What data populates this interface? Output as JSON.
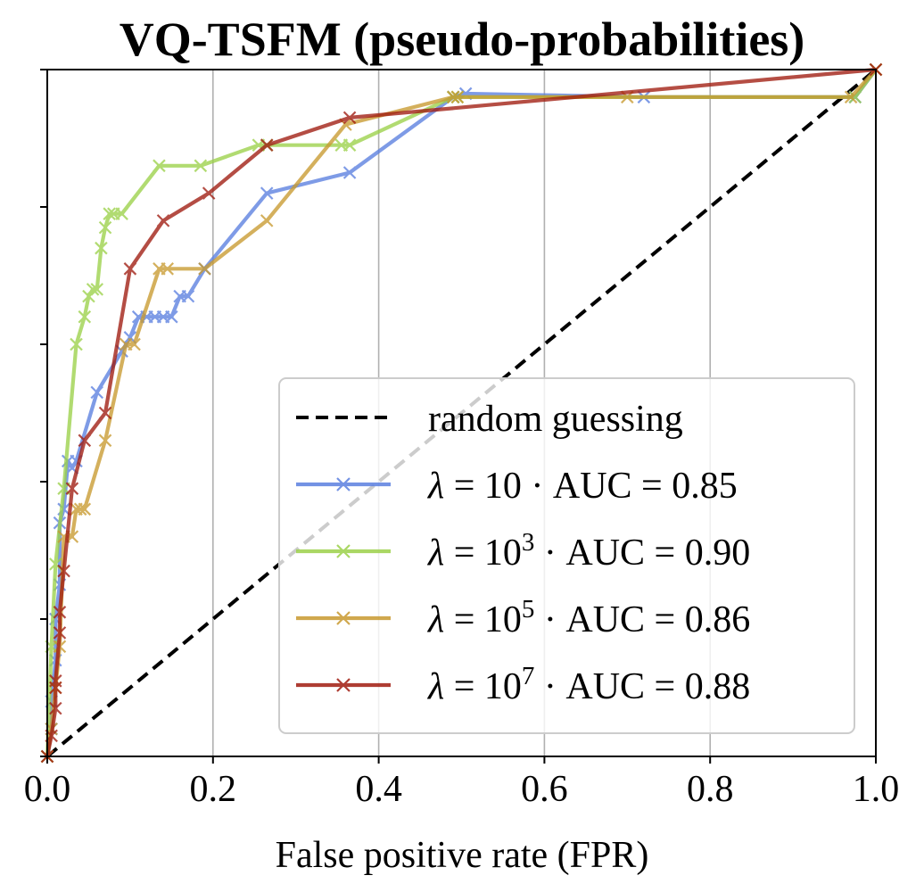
{
  "chart_data": {
    "type": "line",
    "title": "VQ-TSFM (pseudo-probabilities)",
    "xlabel": "False positive rate (FPR)",
    "ylabel": "",
    "xlim": [
      0.0,
      1.0
    ],
    "ylim": [
      0.0,
      1.0
    ],
    "xticks": [
      0.0,
      0.2,
      0.4,
      0.6,
      0.8,
      1.0
    ],
    "xtick_labels": [
      "0.0",
      "0.2",
      "0.4",
      "0.6",
      "0.8",
      "1.0"
    ],
    "yticks": [
      0.0,
      0.2,
      0.4,
      0.6,
      0.8,
      1.0
    ],
    "grid": "vertical",
    "legend_position": "lower-right",
    "reference_line": {
      "name": "random guessing",
      "x": [
        0.0,
        1.0
      ],
      "y": [
        0.0,
        1.0
      ],
      "color": "#000000",
      "style": "dashed"
    },
    "series": [
      {
        "name": "λ = 10 · AUC = 0.85",
        "lambda_base": "10",
        "lambda_exp": "",
        "auc_text": " · AUC = 0.85",
        "color": "#5b7fe0",
        "x": [
          0.0,
          0.005,
          0.005,
          0.01,
          0.01,
          0.015,
          0.015,
          0.02,
          0.025,
          0.03,
          0.035,
          0.06,
          0.09,
          0.1,
          0.11,
          0.12,
          0.13,
          0.14,
          0.15,
          0.16,
          0.17,
          0.19,
          0.265,
          0.365,
          0.49,
          0.505,
          0.72,
          0.975,
          1.0
        ],
        "y": [
          0.0,
          0.04,
          0.08,
          0.14,
          0.2,
          0.25,
          0.34,
          0.36,
          0.43,
          0.42,
          0.43,
          0.53,
          0.59,
          0.61,
          0.64,
          0.64,
          0.64,
          0.64,
          0.64,
          0.67,
          0.67,
          0.71,
          0.82,
          0.85,
          0.96,
          0.965,
          0.96,
          0.96,
          1.0
        ]
      },
      {
        "name": "λ = 10³ · AUC = 0.90",
        "lambda_base": "10",
        "lambda_exp": "3",
        "auc_text": " · AUC = 0.90",
        "color": "#9cd14a",
        "x": [
          0.0,
          0.005,
          0.01,
          0.02,
          0.035,
          0.045,
          0.05,
          0.055,
          0.06,
          0.065,
          0.07,
          0.075,
          0.08,
          0.09,
          0.135,
          0.185,
          0.255,
          0.265,
          0.355,
          0.365,
          0.49,
          0.495,
          0.975,
          1.0
        ],
        "y": [
          0.0,
          0.16,
          0.28,
          0.39,
          0.6,
          0.64,
          0.67,
          0.68,
          0.68,
          0.74,
          0.77,
          0.79,
          0.79,
          0.79,
          0.86,
          0.86,
          0.89,
          0.89,
          0.89,
          0.89,
          0.96,
          0.96,
          0.96,
          1.0
        ]
      },
      {
        "name": "λ = 10⁵ · AUC = 0.86",
        "lambda_base": "10",
        "lambda_exp": "5",
        "auc_text": " · AUC = 0.86",
        "color": "#c89a30",
        "x": [
          0.0,
          0.005,
          0.01,
          0.015,
          0.02,
          0.03,
          0.035,
          0.04,
          0.045,
          0.07,
          0.095,
          0.105,
          0.135,
          0.145,
          0.19,
          0.265,
          0.36,
          0.49,
          0.495,
          0.7,
          0.97,
          1.0
        ],
        "y": [
          0.0,
          0.04,
          0.1,
          0.16,
          0.32,
          0.32,
          0.36,
          0.36,
          0.36,
          0.46,
          0.6,
          0.6,
          0.71,
          0.71,
          0.71,
          0.78,
          0.92,
          0.96,
          0.96,
          0.96,
          0.96,
          1.0
        ]
      },
      {
        "name": "λ = 10⁷ · AUC = 0.88",
        "lambda_base": "10",
        "lambda_exp": "7",
        "auc_text": " · AUC = 0.88",
        "color": "#a01c10",
        "x": [
          0.0,
          0.005,
          0.01,
          0.01,
          0.01,
          0.015,
          0.015,
          0.02,
          0.03,
          0.045,
          0.07,
          0.1,
          0.14,
          0.195,
          0.265,
          0.365,
          1.0
        ],
        "y": [
          0.0,
          0.03,
          0.07,
          0.1,
          0.11,
          0.18,
          0.21,
          0.27,
          0.39,
          0.46,
          0.5,
          0.71,
          0.78,
          0.82,
          0.89,
          0.93,
          1.0
        ]
      }
    ]
  }
}
